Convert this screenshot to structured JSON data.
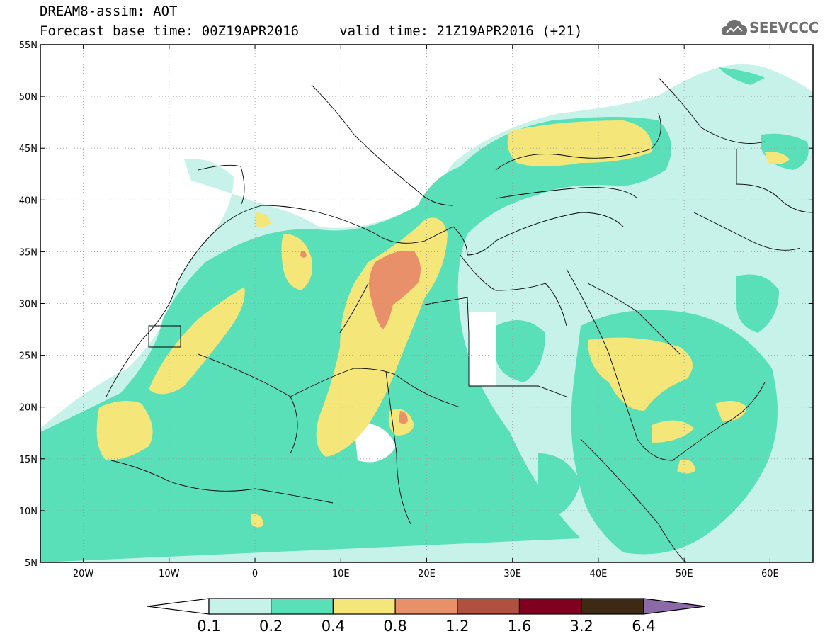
{
  "title": {
    "line1": "DREAM8-assim: AOT",
    "line2": "Forecast base time: 00Z19APR2016     valid time: 21Z19APR2016 (+21)"
  },
  "logo": {
    "text": "SEEVCCC",
    "icon": "cloud-icon"
  },
  "map": {
    "projection": "lat-lon",
    "lon_range": [
      -25,
      65
    ],
    "lat_range": [
      5,
      55
    ],
    "lat_ticks": [
      {
        "value": 55,
        "label": "55N"
      },
      {
        "value": 50,
        "label": "50N"
      },
      {
        "value": 45,
        "label": "45N"
      },
      {
        "value": 40,
        "label": "40N"
      },
      {
        "value": 35,
        "label": "35N"
      },
      {
        "value": 30,
        "label": "30N"
      },
      {
        "value": 25,
        "label": "25N"
      },
      {
        "value": 20,
        "label": "20N"
      },
      {
        "value": 15,
        "label": "15N"
      },
      {
        "value": 10,
        "label": "10N"
      },
      {
        "value": 5,
        "label": "5N"
      }
    ],
    "lon_ticks": [
      {
        "value": -20,
        "label": "20W"
      },
      {
        "value": -10,
        "label": "10W"
      },
      {
        "value": 0,
        "label": "0"
      },
      {
        "value": 10,
        "label": "10E"
      },
      {
        "value": 20,
        "label": "20E"
      },
      {
        "value": 30,
        "label": "30E"
      },
      {
        "value": 40,
        "label": "40E"
      },
      {
        "value": 50,
        "label": "50E"
      },
      {
        "value": 60,
        "label": "60E"
      }
    ],
    "grid": true,
    "grid_style": "dotted"
  },
  "colorbar": {
    "levels": [
      "0.1",
      "0.2",
      "0.4",
      "0.8",
      "1.2",
      "1.6",
      "3.2",
      "6.4"
    ],
    "colors": [
      "#ffffff",
      "#c6f2ea",
      "#5ae0b8",
      "#f5e67a",
      "#e8906a",
      "#b0503f",
      "#800020",
      "#3d2a15",
      "#8c6aa8"
    ]
  },
  "colors": {
    "very_light": "#c6f2ea",
    "light": "#5ae0b8",
    "yellow": "#f5e67a",
    "orange": "#e8906a"
  }
}
